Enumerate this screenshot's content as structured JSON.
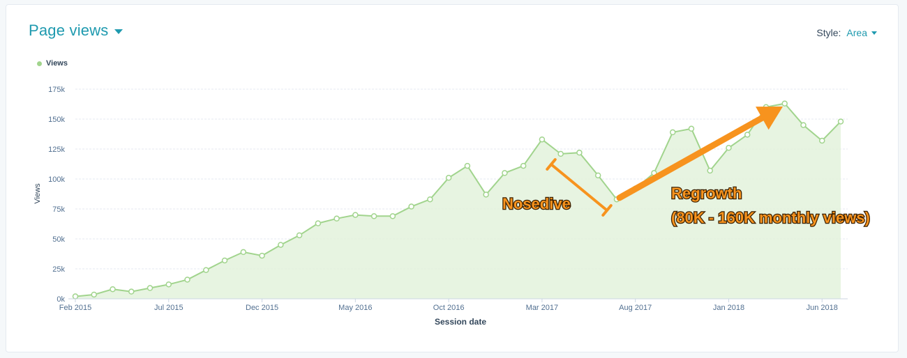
{
  "header": {
    "title": "Page views"
  },
  "style_control": {
    "label": "Style:",
    "value": "Area"
  },
  "colors": {
    "accent": "#1f9aaf",
    "series": "#a1d48d",
    "area": "#e3f2dc",
    "annotation": "#f7931e"
  },
  "chart_data": {
    "type": "area",
    "xlabel": "Session date",
    "ylabel": "Views",
    "ylim": [
      0,
      175000
    ],
    "yticks": [
      {
        "value": 0,
        "label": "0k"
      },
      {
        "value": 25000,
        "label": "25k"
      },
      {
        "value": 50000,
        "label": "50k"
      },
      {
        "value": 75000,
        "label": "75k"
      },
      {
        "value": 100000,
        "label": "100k"
      },
      {
        "value": 125000,
        "label": "125k"
      },
      {
        "value": 150000,
        "label": "150k"
      },
      {
        "value": 175000,
        "label": "175k"
      }
    ],
    "xticks": [
      {
        "index": 0,
        "label": "Feb 2015"
      },
      {
        "index": 5,
        "label": "Jul 2015"
      },
      {
        "index": 10,
        "label": "Dec 2015"
      },
      {
        "index": 15,
        "label": "May 2016"
      },
      {
        "index": 20,
        "label": "Oct 2016"
      },
      {
        "index": 25,
        "label": "Mar 2017"
      },
      {
        "index": 30,
        "label": "Aug 2017"
      },
      {
        "index": 35,
        "label": "Jan 2018"
      },
      {
        "index": 40,
        "label": "Jun 2018"
      }
    ],
    "legend": {
      "position": "top-left"
    },
    "grid": true,
    "series": [
      {
        "name": "Views",
        "values": [
          2000,
          3500,
          8000,
          6000,
          9000,
          12000,
          16000,
          24000,
          32000,
          39000,
          36000,
          45000,
          53000,
          63000,
          67000,
          70000,
          69000,
          69000,
          77000,
          83000,
          101000,
          111000,
          87000,
          105000,
          111000,
          133000,
          121000,
          122000,
          103000,
          83000,
          92000,
          105000,
          139000,
          142000,
          107000,
          126000,
          137000,
          160000,
          163000,
          145000,
          132000,
          148000
        ]
      }
    ],
    "annotations": [
      {
        "type": "line-bracket",
        "label": "Nosedive"
      },
      {
        "type": "arrow",
        "lines": [
          "Regrowth",
          "(80K - 160K monthly views)"
        ]
      }
    ]
  }
}
